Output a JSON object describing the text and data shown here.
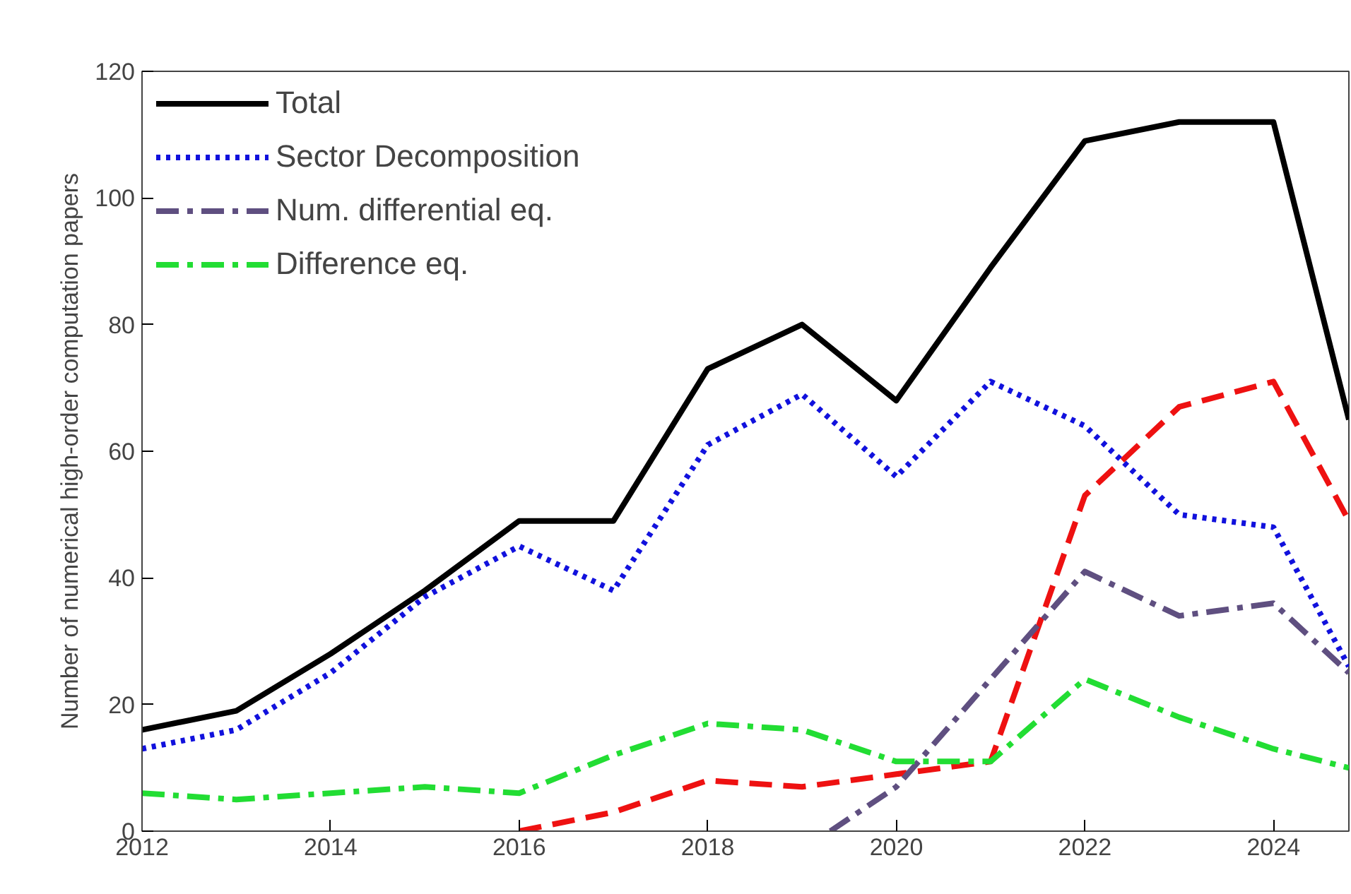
{
  "chart_data": {
    "type": "line",
    "ylabel": "Number of numerical high-order computation papers",
    "x": [
      2012,
      2013,
      2014,
      2015,
      2016,
      2017,
      2018,
      2019,
      2020,
      2021,
      2022,
      2023,
      2024,
      2024.8
    ],
    "series": [
      {
        "name": "Total",
        "color": "#000000",
        "line_style": "solid",
        "values": [
          16,
          19,
          28,
          38,
          49,
          49,
          73,
          80,
          68,
          89,
          109,
          112,
          112,
          65
        ]
      },
      {
        "color": "#ee1111",
        "line_style": "dashed",
        "x": [
          2016,
          2017,
          2018,
          2019,
          2020,
          2021,
          2022,
          2023,
          2024,
          2024.8
        ],
        "values": [
          0,
          3,
          8,
          7,
          9,
          11,
          53,
          67,
          71,
          49
        ]
      },
      {
        "name": "Sector Decomposition",
        "color": "#1111dd",
        "line_style": "dotted",
        "values": [
          13,
          16,
          25,
          37,
          45,
          38,
          61,
          69,
          56,
          71,
          64,
          50,
          48,
          26
        ]
      },
      {
        "name": "Num. differential eq.",
        "color": "#5f4f80",
        "line_style": "dashdot",
        "x": [
          2019.3,
          2020,
          2021,
          2022,
          2023,
          2024,
          2024.8
        ],
        "values": [
          0,
          7,
          24,
          41,
          34,
          36,
          25
        ]
      },
      {
        "name": "Difference eq.",
        "color": "#22dd33",
        "line_style": "dashdot",
        "values": [
          6,
          5,
          6,
          7,
          6,
          12,
          17,
          16,
          11,
          11,
          24,
          18,
          13,
          10
        ]
      }
    ],
    "xlim": [
      2012,
      2024.8
    ],
    "ylim": [
      0,
      120
    ],
    "xticks": [
      2012,
      2014,
      2016,
      2018,
      2020,
      2022,
      2024
    ],
    "yticks": [
      0,
      20,
      40,
      60,
      80,
      100,
      120
    ],
    "grid": false,
    "legend": "top left"
  }
}
